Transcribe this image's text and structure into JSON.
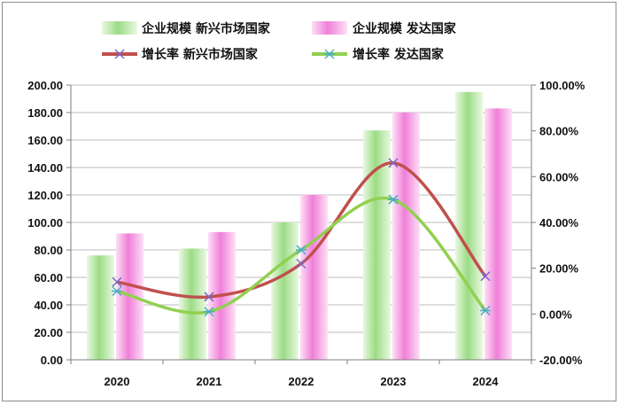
{
  "chart_data": {
    "type": "bar",
    "categories": [
      "2020",
      "2021",
      "2022",
      "2023",
      "2024"
    ],
    "series": [
      {
        "name": "企业规模 新兴市场国家",
        "kind": "bar",
        "axis": "left",
        "values": [
          76,
          81,
          100,
          167,
          195
        ],
        "color": "#9bdc85"
      },
      {
        "name": "企业规模 发达国家",
        "kind": "bar",
        "axis": "left",
        "values": [
          92,
          93,
          120,
          180,
          183
        ],
        "color": "#f07fd9"
      },
      {
        "name": "增长率 新兴市场国家",
        "kind": "line",
        "axis": "right",
        "values": [
          0.14,
          0.075,
          0.22,
          0.66,
          0.165
        ],
        "color": "#c0504d",
        "marker": "x"
      },
      {
        "name": "增长率 发达国家",
        "kind": "line",
        "axis": "right",
        "values": [
          0.1,
          0.01,
          0.28,
          0.5,
          0.015
        ],
        "color": "#92d050",
        "marker": "star"
      }
    ],
    "left_axis": {
      "ylim": [
        0,
        200
      ],
      "ticks": [
        "0.00",
        "20.00",
        "40.00",
        "60.00",
        "80.00",
        "100.00",
        "120.00",
        "140.00",
        "160.00",
        "180.00",
        "200.00"
      ]
    },
    "right_axis": {
      "ylim": [
        -0.2,
        1.0
      ],
      "ticks": [
        "-20.00%",
        "0.00%",
        "20.00%",
        "40.00%",
        "60.00%",
        "80.00%",
        "100.00%"
      ]
    },
    "grid": true,
    "legend_position": "top",
    "title": "",
    "xlabel": "",
    "ylabel": ""
  }
}
